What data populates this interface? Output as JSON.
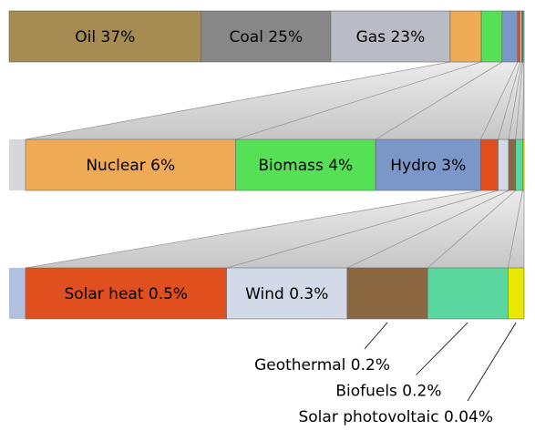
{
  "chart_data": {
    "type": "zoom-bar",
    "values": [
      37,
      25,
      23,
      6,
      4,
      3,
      0.5,
      0.3,
      0.2,
      0.2,
      0.04
    ],
    "value_labels": [
      "Oil 37%",
      "Coal 25%",
      "Gas 23%",
      "Nuclear 6%",
      "Biomass 4%",
      "Hydro 3%",
      "Solar heat 0.5%",
      "Wind 0.3%",
      "Geothermal 0.2%",
      "Biofuels 0.2%",
      "Solar photovoltaic 0.04%"
    ],
    "colors": [
      "#a68b52",
      "#878787",
      "#b9bcc4",
      "#eeaa55",
      "#55e055",
      "#7b96c8",
      "#e0501e",
      "#d2d9e8",
      "#8b6842",
      "#5ad8a0",
      "#e8e800"
    ]
  }
}
